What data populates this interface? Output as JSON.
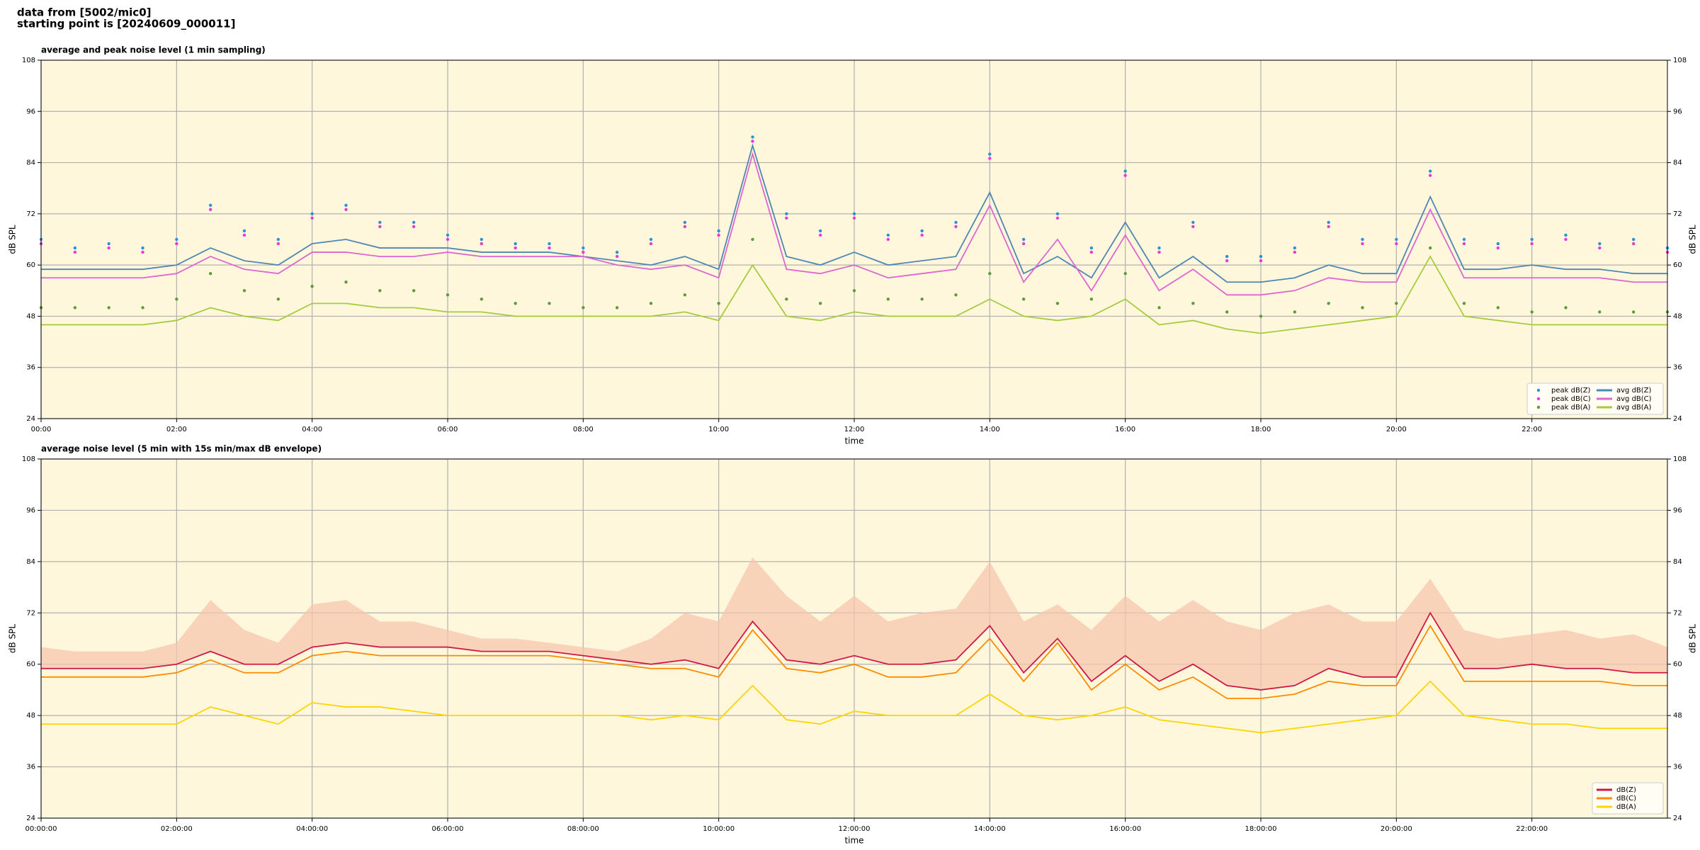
{
  "header": {
    "line1": "data from [5002/mic0]",
    "line2": "starting point is [20240609_000011]"
  },
  "chart_data": [
    {
      "type": "line",
      "title": "average and peak noise level (1 min sampling)",
      "xlabel": "time",
      "ylabel": "dB SPL",
      "x": [
        0,
        0.5,
        1,
        1.5,
        2,
        2.5,
        3,
        3.5,
        4,
        4.5,
        5,
        5.5,
        6,
        6.5,
        7,
        7.5,
        8,
        8.5,
        9,
        9.5,
        10,
        10.5,
        11,
        11.5,
        12,
        12.5,
        13,
        13.5,
        14,
        14.5,
        15,
        15.5,
        16,
        16.5,
        17,
        17.5,
        18,
        18.5,
        19,
        19.5,
        20,
        20.5,
        21,
        21.5,
        22,
        22.5,
        23,
        23.5,
        24
      ],
      "xlim": [
        0,
        24
      ],
      "xticks": [
        {
          "value": 0,
          "label": "00:00"
        },
        {
          "value": 2,
          "label": "02:00"
        },
        {
          "value": 4,
          "label": "04:00"
        },
        {
          "value": 6,
          "label": "06:00"
        },
        {
          "value": 8,
          "label": "08:00"
        },
        {
          "value": 10,
          "label": "10:00"
        },
        {
          "value": 12,
          "label": "12:00"
        },
        {
          "value": 14,
          "label": "14:00"
        },
        {
          "value": 16,
          "label": "16:00"
        },
        {
          "value": 18,
          "label": "18:00"
        },
        {
          "value": 20,
          "label": "20:00"
        },
        {
          "value": 22,
          "label": "22:00"
        }
      ],
      "ylim": [
        24,
        108
      ],
      "yticks": [
        24,
        36,
        48,
        60,
        72,
        84,
        96,
        108
      ],
      "grid": true,
      "legend": "lower right",
      "series": [
        {
          "name": "peak dB(Z)",
          "kind": "points",
          "color": "#2f8fd8",
          "values": [
            66,
            64,
            65,
            64,
            66,
            74,
            68,
            66,
            72,
            74,
            70,
            70,
            67,
            66,
            65,
            65,
            64,
            63,
            66,
            70,
            68,
            90,
            72,
            68,
            72,
            67,
            68,
            70,
            86,
            66,
            72,
            64,
            82,
            64,
            70,
            62,
            62,
            64,
            70,
            66,
            66,
            82,
            66,
            65,
            66,
            67,
            65,
            66,
            64
          ]
        },
        {
          "name": "peak dB(C)",
          "kind": "points",
          "color": "#e83ad8",
          "values": [
            65,
            63,
            64,
            63,
            65,
            73,
            67,
            65,
            71,
            73,
            69,
            69,
            66,
            65,
            64,
            64,
            63,
            62,
            65,
            69,
            67,
            89,
            71,
            67,
            71,
            66,
            67,
            69,
            85,
            65,
            71,
            63,
            81,
            63,
            69,
            61,
            61,
            63,
            69,
            65,
            65,
            81,
            65,
            64,
            65,
            66,
            64,
            65,
            63
          ]
        },
        {
          "name": "peak dB(A)",
          "kind": "points",
          "color": "#5e9a3a",
          "values": [
            50,
            50,
            50,
            50,
            52,
            58,
            54,
            52,
            55,
            56,
            54,
            54,
            53,
            52,
            51,
            51,
            50,
            50,
            51,
            53,
            51,
            66,
            52,
            51,
            54,
            52,
            52,
            53,
            58,
            52,
            51,
            52,
            58,
            50,
            51,
            49,
            48,
            49,
            51,
            50,
            51,
            64,
            51,
            50,
            49,
            50,
            49,
            49,
            49
          ]
        },
        {
          "name": "avg dB(Z)",
          "kind": "line",
          "color": "#4f86b4",
          "values": [
            59,
            59,
            59,
            59,
            60,
            64,
            61,
            60,
            65,
            66,
            64,
            64,
            64,
            63,
            63,
            63,
            62,
            61,
            60,
            62,
            59,
            88,
            62,
            60,
            63,
            60,
            61,
            62,
            77,
            58,
            62,
            57,
            70,
            57,
            62,
            56,
            56,
            57,
            60,
            58,
            58,
            76,
            59,
            59,
            60,
            59,
            59,
            58,
            58
          ]
        },
        {
          "name": "avg dB(C)",
          "kind": "line",
          "color": "#dd66d0",
          "values": [
            57,
            57,
            57,
            57,
            58,
            62,
            59,
            58,
            63,
            63,
            62,
            62,
            63,
            62,
            62,
            62,
            62,
            60,
            59,
            60,
            57,
            86,
            59,
            58,
            60,
            57,
            58,
            59,
            74,
            56,
            66,
            54,
            67,
            54,
            59,
            53,
            53,
            54,
            57,
            56,
            56,
            73,
            57,
            57,
            57,
            57,
            57,
            56,
            56
          ]
        },
        {
          "name": "avg dB(A)",
          "kind": "line",
          "color": "#a4cc3c",
          "values": [
            46,
            46,
            46,
            46,
            47,
            50,
            48,
            47,
            51,
            51,
            50,
            50,
            49,
            49,
            48,
            48,
            48,
            48,
            48,
            49,
            47,
            60,
            48,
            47,
            49,
            48,
            48,
            48,
            52,
            48,
            47,
            48,
            52,
            46,
            47,
            45,
            44,
            45,
            46,
            47,
            48,
            62,
            48,
            47,
            46,
            46,
            46,
            46,
            46
          ]
        }
      ]
    },
    {
      "type": "line",
      "title": "average noise level (5 min with 15s min/max dB envelope)",
      "xlabel": "time",
      "ylabel": "dB SPL",
      "x": [
        0,
        0.5,
        1,
        1.5,
        2,
        2.5,
        3,
        3.5,
        4,
        4.5,
        5,
        5.5,
        6,
        6.5,
        7,
        7.5,
        8,
        8.5,
        9,
        9.5,
        10,
        10.5,
        11,
        11.5,
        12,
        12.5,
        13,
        13.5,
        14,
        14.5,
        15,
        15.5,
        16,
        16.5,
        17,
        17.5,
        18,
        18.5,
        19,
        19.5,
        20,
        20.5,
        21,
        21.5,
        22,
        22.5,
        23,
        23.5,
        24
      ],
      "xlim": [
        0,
        24
      ],
      "xticks": [
        {
          "value": 0,
          "label": "00:00:00"
        },
        {
          "value": 2,
          "label": "02:00:00"
        },
        {
          "value": 4,
          "label": "04:00:00"
        },
        {
          "value": 6,
          "label": "06:00:00"
        },
        {
          "value": 8,
          "label": "08:00:00"
        },
        {
          "value": 10,
          "label": "10:00:00"
        },
        {
          "value": 12,
          "label": "12:00:00"
        },
        {
          "value": 14,
          "label": "14:00:00"
        },
        {
          "value": 16,
          "label": "16:00:00"
        },
        {
          "value": 18,
          "label": "18:00:00"
        },
        {
          "value": 20,
          "label": "20:00:00"
        },
        {
          "value": 22,
          "label": "22:00:00"
        }
      ],
      "ylim": [
        24,
        108
      ],
      "yticks": [
        24,
        36,
        48,
        60,
        72,
        84,
        96,
        108
      ],
      "grid": true,
      "legend": "lower right",
      "envelope": {
        "color": "#f5c6ad",
        "high": [
          64,
          63,
          63,
          63,
          65,
          75,
          68,
          65,
          74,
          75,
          70,
          70,
          68,
          66,
          66,
          65,
          64,
          63,
          66,
          72,
          70,
          85,
          76,
          70,
          76,
          70,
          72,
          73,
          84,
          70,
          74,
          68,
          76,
          70,
          75,
          70,
          68,
          72,
          74,
          70,
          70,
          80,
          68,
          66,
          67,
          68,
          66,
          67,
          64
        ]
      },
      "series": [
        {
          "name": "dB(Z)",
          "kind": "line",
          "color": "#d01848",
          "values": [
            59,
            59,
            59,
            59,
            60,
            63,
            60,
            60,
            64,
            65,
            64,
            64,
            64,
            63,
            63,
            63,
            62,
            61,
            60,
            61,
            59,
            70,
            61,
            60,
            62,
            60,
            60,
            61,
            69,
            58,
            66,
            56,
            62,
            56,
            60,
            55,
            54,
            55,
            59,
            57,
            57,
            72,
            59,
            59,
            60,
            59,
            59,
            58,
            58
          ]
        },
        {
          "name": "dB(C)",
          "kind": "line",
          "color": "#ff8a00",
          "values": [
            57,
            57,
            57,
            57,
            58,
            61,
            58,
            58,
            62,
            63,
            62,
            62,
            62,
            62,
            62,
            62,
            61,
            60,
            59,
            59,
            57,
            68,
            59,
            58,
            60,
            57,
            57,
            58,
            66,
            56,
            65,
            54,
            60,
            54,
            57,
            52,
            52,
            53,
            56,
            55,
            55,
            69,
            56,
            56,
            56,
            56,
            56,
            55,
            55
          ]
        },
        {
          "name": "dB(A)",
          "kind": "line",
          "color": "#ffd400",
          "values": [
            46,
            46,
            46,
            46,
            46,
            50,
            48,
            46,
            51,
            50,
            50,
            49,
            48,
            48,
            48,
            48,
            48,
            48,
            47,
            48,
            47,
            55,
            47,
            46,
            49,
            48,
            48,
            48,
            53,
            48,
            47,
            48,
            50,
            47,
            46,
            45,
            44,
            45,
            46,
            47,
            48,
            56,
            48,
            47,
            46,
            46,
            45,
            45,
            45
          ]
        }
      ]
    }
  ]
}
